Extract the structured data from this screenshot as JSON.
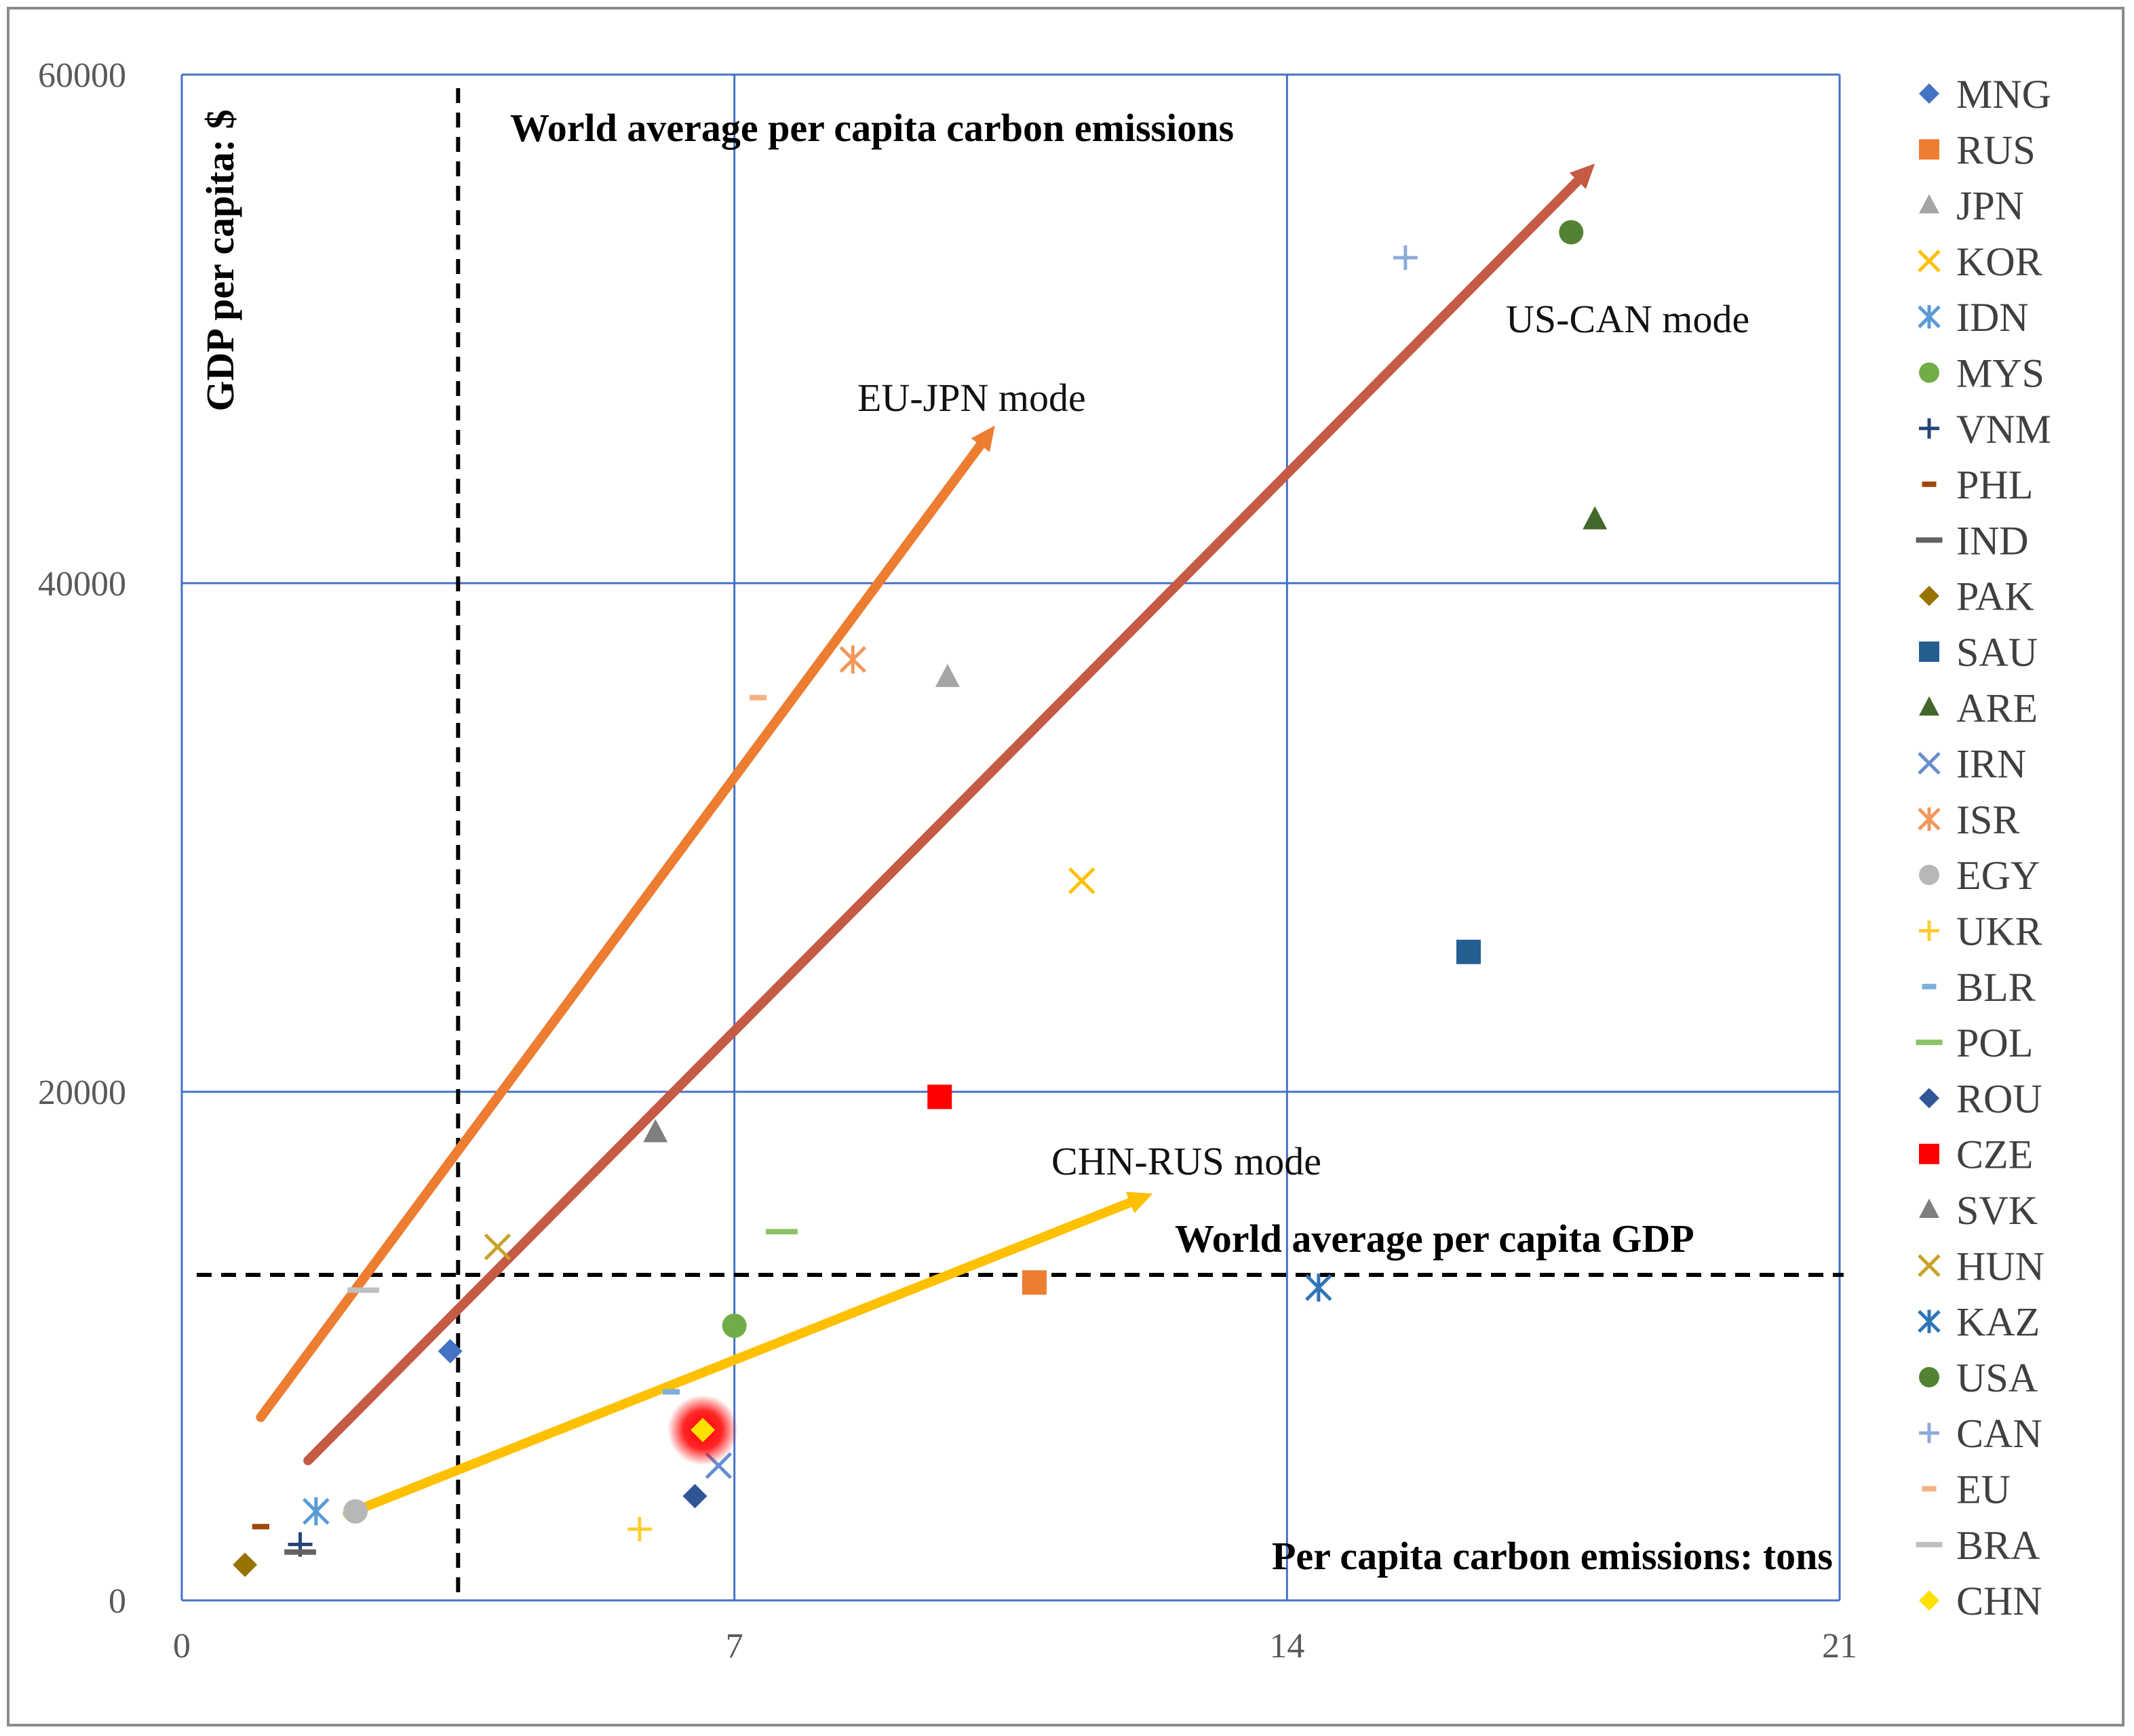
{
  "chart_data": {
    "type": "scatter",
    "title": "",
    "xlabel": "Per capita carbon emissions: tons",
    "ylabel": "GDP per capita: $",
    "xlim": [
      0,
      21
    ],
    "ylim": [
      0,
      60000
    ],
    "x_ticks": [
      "0",
      "7",
      "14",
      "21"
    ],
    "y_ticks": [
      "0",
      "20000",
      "40000",
      "60000"
    ],
    "grid": true,
    "legend_position": "right",
    "reference_lines": [
      {
        "name": "world-avg-emissions-line",
        "label": "World average per capita carbon emissions",
        "orientation": "vertical",
        "value": 3.5
      },
      {
        "name": "world-avg-gdp-line",
        "label": "World average per capita GDP",
        "orientation": "horizontal",
        "value": 12800
      }
    ],
    "trend_arrows": [
      {
        "name": "eu-jpn-arrow",
        "label": "EU-JPN mode",
        "color": "#ED7D31",
        "from": [
          1.0,
          7200
        ],
        "to": [
          10.3,
          46200
        ]
      },
      {
        "name": "us-can-arrow",
        "label": "US-CAN mode",
        "color": "#C55A45",
        "from": [
          1.6,
          5500
        ],
        "to": [
          17.9,
          56500
        ]
      },
      {
        "name": "chn-rus-arrow",
        "label": "CHN-RUS mode",
        "color": "#FFC000",
        "from": [
          2.1,
          3400
        ],
        "to": [
          12.3,
          16000
        ]
      }
    ],
    "series": [
      {
        "name": "MNG",
        "marker": "diamond",
        "color": "#4472C4",
        "x": 3.4,
        "y": 9800
      },
      {
        "name": "RUS",
        "marker": "square",
        "color": "#ED7D31",
        "x": 10.8,
        "y": 12500
      },
      {
        "name": "JPN",
        "marker": "triangle",
        "color": "#A5A5A5",
        "x": 9.7,
        "y": 36300
      },
      {
        "name": "KOR",
        "marker": "x",
        "color": "#FFC000",
        "x": 11.4,
        "y": 28300
      },
      {
        "name": "IDN",
        "marker": "asterisk",
        "color": "#5B9BD5",
        "x": 1.7,
        "y": 3500
      },
      {
        "name": "MYS",
        "marker": "circle",
        "color": "#70AD47",
        "x": 7.0,
        "y": 10800
      },
      {
        "name": "VNM",
        "marker": "plus",
        "color": "#264478",
        "x": 1.5,
        "y": 2200
      },
      {
        "name": "PHL",
        "marker": "dash",
        "color": "#9E480E",
        "x": 1.0,
        "y": 2900
      },
      {
        "name": "IND",
        "marker": "bar",
        "color": "#636363",
        "x": 1.5,
        "y": 1900
      },
      {
        "name": "PAK",
        "marker": "diamond",
        "color": "#997300",
        "x": 0.8,
        "y": 1400
      },
      {
        "name": "SAU",
        "marker": "square",
        "color": "#255E91",
        "x": 16.3,
        "y": 25500
      },
      {
        "name": "ARE",
        "marker": "triangle",
        "color": "#43682B",
        "x": 17.9,
        "y": 42500
      },
      {
        "name": "IRN",
        "marker": "x",
        "color": "#698ED0",
        "x": 6.8,
        "y": 5300
      },
      {
        "name": "ISR",
        "marker": "asterisk",
        "color": "#F1975A",
        "x": 8.5,
        "y": 37000
      },
      {
        "name": "EGY",
        "marker": "circle",
        "color": "#B7B7B7",
        "x": 2.2,
        "y": 3500
      },
      {
        "name": "UKR",
        "marker": "plus",
        "color": "#FFCD33",
        "x": 5.8,
        "y": 2800
      },
      {
        "name": "BLR",
        "marker": "dash",
        "color": "#7CAFDD",
        "x": 6.2,
        "y": 8200
      },
      {
        "name": "POL",
        "marker": "bar",
        "color": "#8CC168",
        "x": 7.6,
        "y": 14500
      },
      {
        "name": "ROU",
        "marker": "diamond",
        "color": "#2F5597",
        "x": 6.5,
        "y": 4100
      },
      {
        "name": "CZE",
        "marker": "square",
        "color": "#FF0000",
        "x": 9.6,
        "y": 19800
      },
      {
        "name": "SVK",
        "marker": "triangle",
        "color": "#7F7F7F",
        "x": 6.0,
        "y": 18400
      },
      {
        "name": "HUN",
        "marker": "x",
        "color": "#C9A227",
        "x": 4.0,
        "y": 13900
      },
      {
        "name": "KAZ",
        "marker": "asterisk",
        "color": "#2E75B6",
        "x": 14.4,
        "y": 12300
      },
      {
        "name": "USA",
        "marker": "circle",
        "color": "#548235",
        "x": 17.6,
        "y": 53800
      },
      {
        "name": "CAN",
        "marker": "plus",
        "color": "#8EAADB",
        "x": 15.5,
        "y": 52800
      },
      {
        "name": "EU",
        "marker": "dash",
        "color": "#F4B183",
        "x": 7.3,
        "y": 35500
      },
      {
        "name": "BRA",
        "marker": "bar",
        "color": "#BFBFBF",
        "x": 2.3,
        "y": 12200
      },
      {
        "name": "CHN",
        "marker": "diamond",
        "color": "#FFE100",
        "x": 6.6,
        "y": 6700,
        "highlighted": true
      }
    ]
  }
}
